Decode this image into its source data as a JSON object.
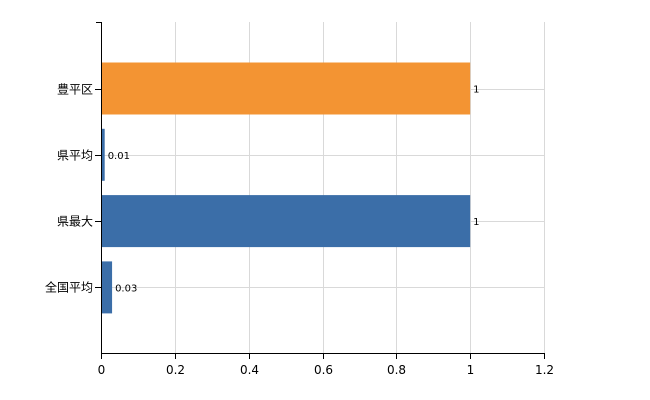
{
  "chart_data": {
    "type": "bar",
    "orientation": "horizontal",
    "categories": [
      "豊平区",
      "県平均",
      "県最大",
      "全国平均"
    ],
    "values": [
      1,
      0.01,
      1,
      0.03
    ],
    "data_labels": [
      "1",
      "0.01",
      "1",
      "0.03"
    ],
    "bar_colors": [
      "#f39433",
      "#3b6ea8",
      "#3b6ea8",
      "#3b6ea8"
    ],
    "xlim": [
      0,
      1.2
    ],
    "xticks": [
      0,
      0.2,
      0.4,
      0.6,
      0.8,
      1,
      1.2
    ],
    "xtick_labels": [
      "0",
      "0.2",
      "0.4",
      "0.6",
      "0.8",
      "1",
      "1.2"
    ],
    "grid": true,
    "legend": "none",
    "title": "",
    "xlabel": "",
    "ylabel": ""
  }
}
